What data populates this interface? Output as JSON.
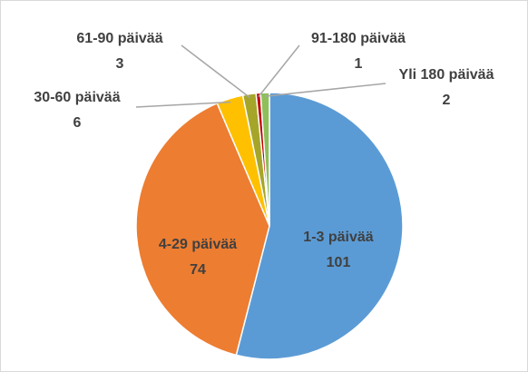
{
  "chart_data": {
    "type": "pie",
    "categories": [
      "1-3 päivää",
      "4-29 päivää",
      "30-60 päivää",
      "61-90 päivää",
      "91-180 päivää",
      "Yli 180 päivää"
    ],
    "values": [
      101,
      74,
      6,
      3,
      1,
      2
    ],
    "colors": [
      "#5b9bd5",
      "#ed7d31",
      "#ffc000",
      "#a5a52a",
      "#c00000",
      "#8fbf5a"
    ]
  }
}
